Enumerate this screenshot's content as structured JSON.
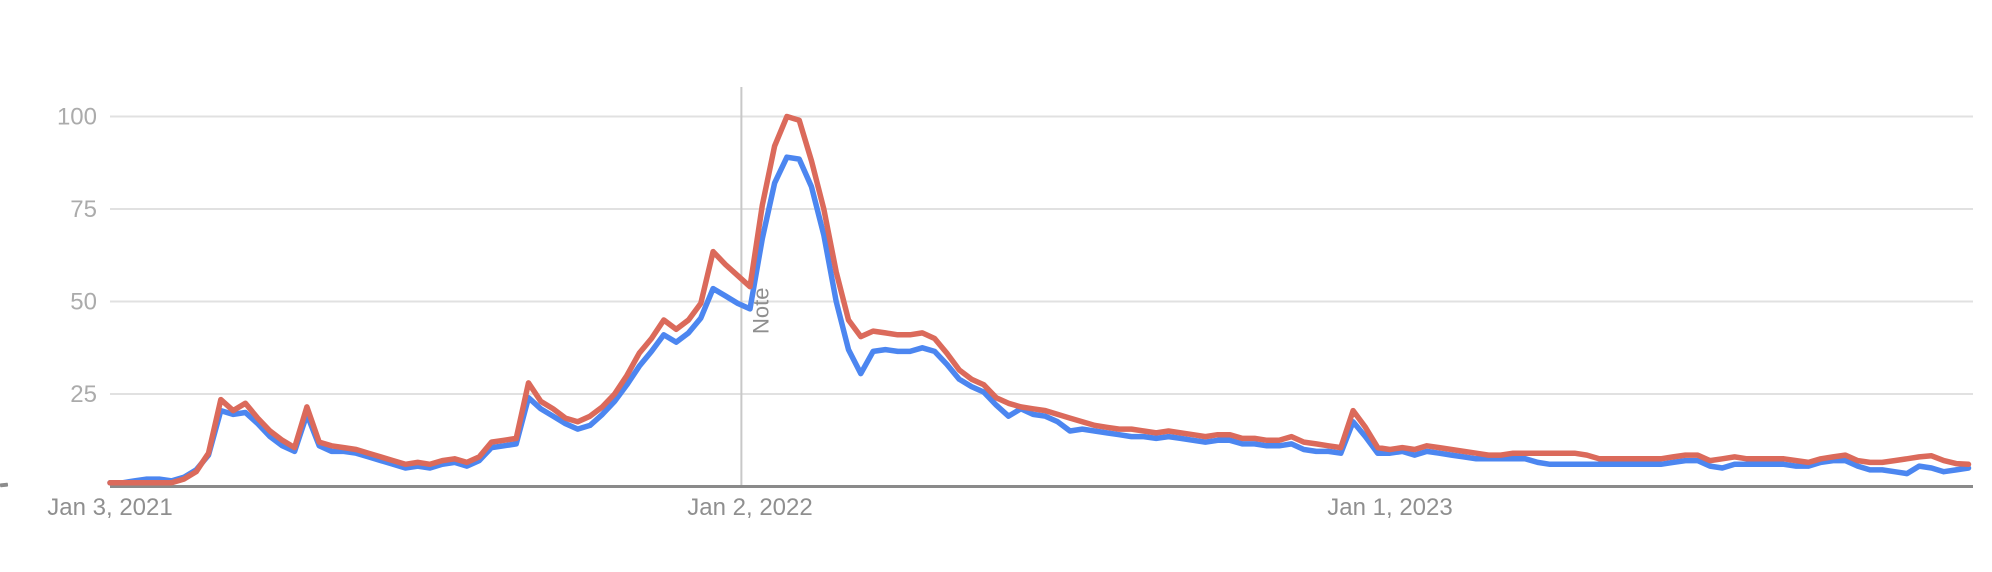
{
  "chart_data": {
    "type": "line",
    "title": "",
    "xlabel": "",
    "ylabel": "",
    "grid": "horizontal",
    "legend": "none",
    "x_axis": {
      "unit": "weeks",
      "ticks": [
        {
          "label": "Jan 3, 2021",
          "week": 0
        },
        {
          "label": "Jan 2, 2022",
          "week": 52
        },
        {
          "label": "Jan 1, 2023",
          "week": 104
        }
      ]
    },
    "y_axis": {
      "range": [
        0,
        100
      ],
      "tick_values": [
        25,
        50,
        75,
        100
      ]
    },
    "annotation": {
      "label": "Note",
      "week_position": 51.3
    },
    "series": [
      {
        "name": "blue",
        "color": "#4c86f0",
        "values": [
          1,
          1,
          1.5,
          2,
          2,
          1.5,
          2.5,
          4.5,
          8.5,
          20.5,
          19.5,
          20,
          17,
          13.5,
          11,
          9.5,
          19.5,
          11,
          9.5,
          9.5,
          9,
          8,
          7,
          6,
          5,
          5.5,
          5,
          6,
          6.5,
          5.5,
          7,
          10.5,
          11,
          11.5,
          24,
          21,
          19,
          17,
          15.5,
          16.5,
          19.5,
          23,
          27.5,
          32.5,
          36.5,
          41,
          39,
          41.5,
          45.5,
          53.5,
          51.5,
          49.5,
          48,
          67,
          82,
          89,
          88.5,
          81,
          68,
          50,
          37,
          30.5,
          36.5,
          37,
          36.5,
          36.5,
          37.5,
          36.5,
          33,
          29,
          27,
          25.5,
          22,
          19,
          21,
          19.5,
          19,
          17.5,
          15,
          15.5,
          15,
          14.5,
          14,
          13.5,
          13.5,
          13,
          13.5,
          13,
          12.5,
          12,
          12.5,
          12.5,
          11.5,
          11.5,
          11,
          11,
          11.5,
          10,
          9.5,
          9.5,
          9,
          17.5,
          13.5,
          9,
          9,
          9.5,
          8.5,
          9.5,
          9,
          8.5,
          8,
          7.5,
          7.5,
          7.5,
          7.5,
          7.5,
          6.5,
          6,
          6,
          6,
          6,
          6,
          6,
          6,
          6,
          6,
          6,
          6.5,
          7,
          7,
          5.5,
          5,
          6,
          6,
          6,
          6,
          6,
          5.5,
          5.5,
          6.5,
          7,
          7,
          5.5,
          4.5,
          4.5,
          4,
          3.5,
          5.5,
          5,
          4,
          4.5,
          5
        ]
      },
      {
        "name": "red",
        "color": "#db6a5b",
        "values": [
          1,
          1,
          1,
          1,
          1,
          1,
          2,
          4,
          9,
          23.5,
          20.5,
          22.5,
          18.5,
          15,
          12.5,
          10.5,
          21.5,
          12,
          11,
          10.5,
          10,
          9,
          8,
          7,
          6,
          6.5,
          6,
          7,
          7.5,
          6.5,
          8,
          12,
          12.5,
          13,
          28,
          23,
          21,
          18.5,
          17.5,
          19,
          21.5,
          25,
          30,
          36,
          40,
          45,
          42.5,
          45,
          49.5,
          63.5,
          60,
          57,
          54,
          76,
          92,
          100,
          99,
          88,
          75,
          58,
          45,
          40.5,
          42,
          41.5,
          41,
          41,
          41.5,
          40,
          36,
          31.5,
          29,
          27.5,
          24,
          22.5,
          21.5,
          21,
          20.5,
          19.5,
          18.5,
          17.5,
          16.5,
          16,
          15.5,
          15.5,
          15,
          14.5,
          15,
          14.5,
          14,
          13.5,
          14,
          14,
          13,
          13,
          12.5,
          12.5,
          13.5,
          12,
          11.5,
          11,
          10.5,
          20.5,
          16,
          10.5,
          10,
          10.5,
          10,
          11,
          10.5,
          10,
          9.5,
          9,
          8.5,
          8.5,
          9,
          9,
          9,
          9,
          9,
          9,
          8.5,
          7.5,
          7.5,
          7.5,
          7.5,
          7.5,
          7.5,
          8,
          8.5,
          8.5,
          7,
          7.5,
          8,
          7.5,
          7.5,
          7.5,
          7.5,
          7,
          6.5,
          7.5,
          8,
          8.5,
          7,
          6.5,
          6.5,
          7,
          7.5,
          8,
          8.3,
          7,
          6.2,
          6
        ]
      }
    ]
  }
}
